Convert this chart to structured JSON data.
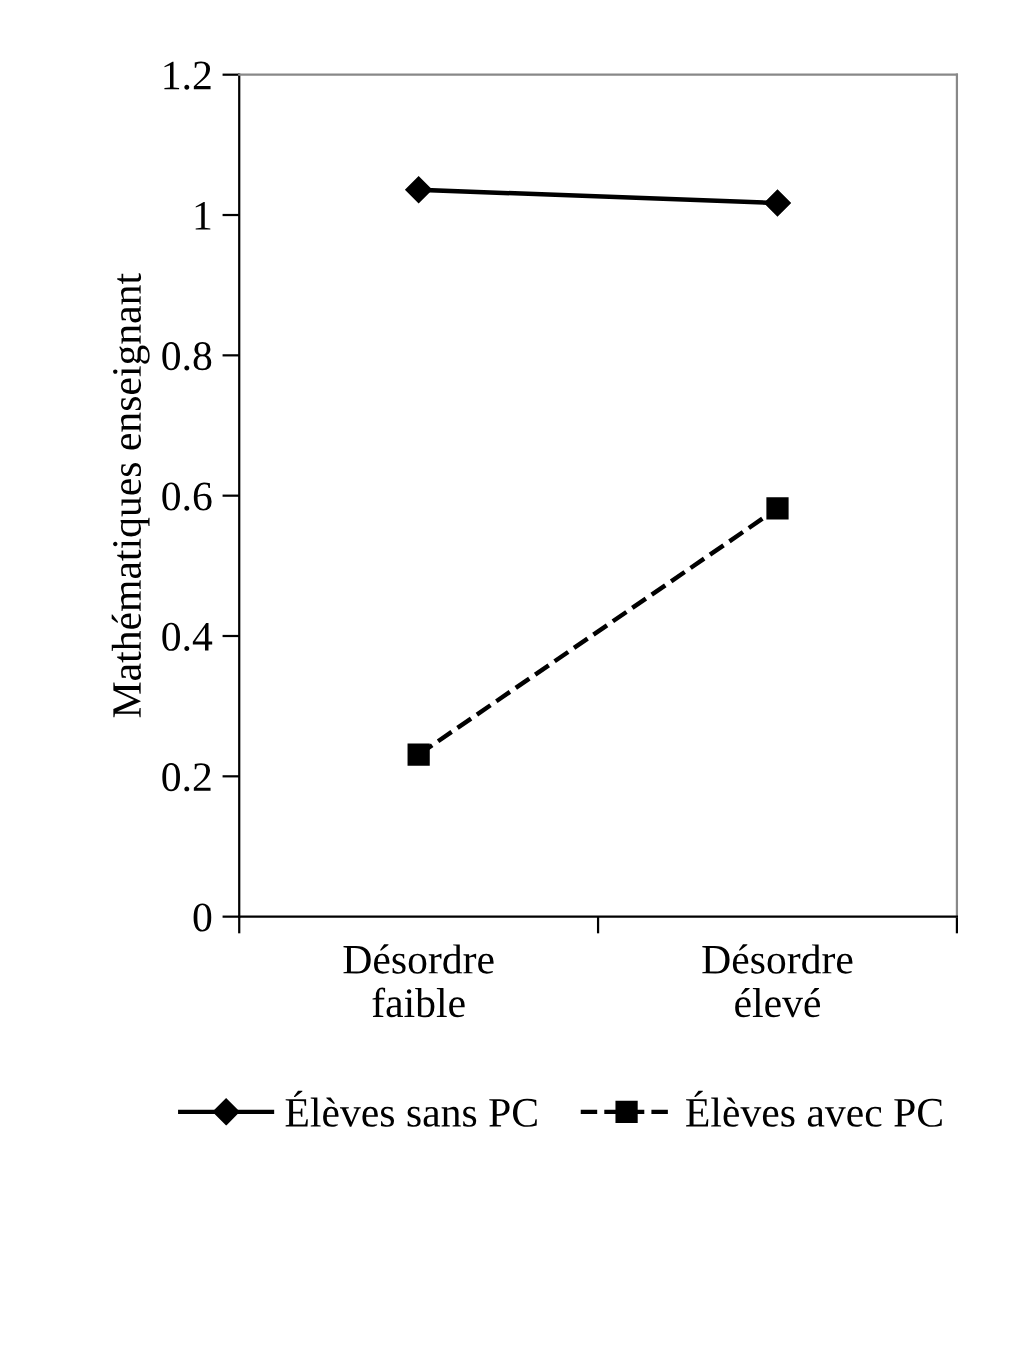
{
  "chart_data": {
    "type": "line",
    "ylabel": "Mathématiques enseignant",
    "categories": [
      "Désordre\nfaible",
      "Désordre\nélevé"
    ],
    "series": [
      {
        "name": "Élèves sans PC",
        "color": "#000000",
        "values": [
          1.036,
          1.017
        ],
        "marker": "diamond",
        "line_style": "solid"
      },
      {
        "name": "Élèves avec PC",
        "color": "#000000",
        "values": [
          0.231,
          0.582
        ],
        "marker": "square",
        "line_style": "dashed"
      }
    ],
    "ylim": [
      0,
      1.2
    ],
    "yticks": [
      0,
      0.2,
      0.4,
      0.6,
      0.8,
      1,
      1.2
    ],
    "grid": false,
    "legend": "bottom"
  }
}
